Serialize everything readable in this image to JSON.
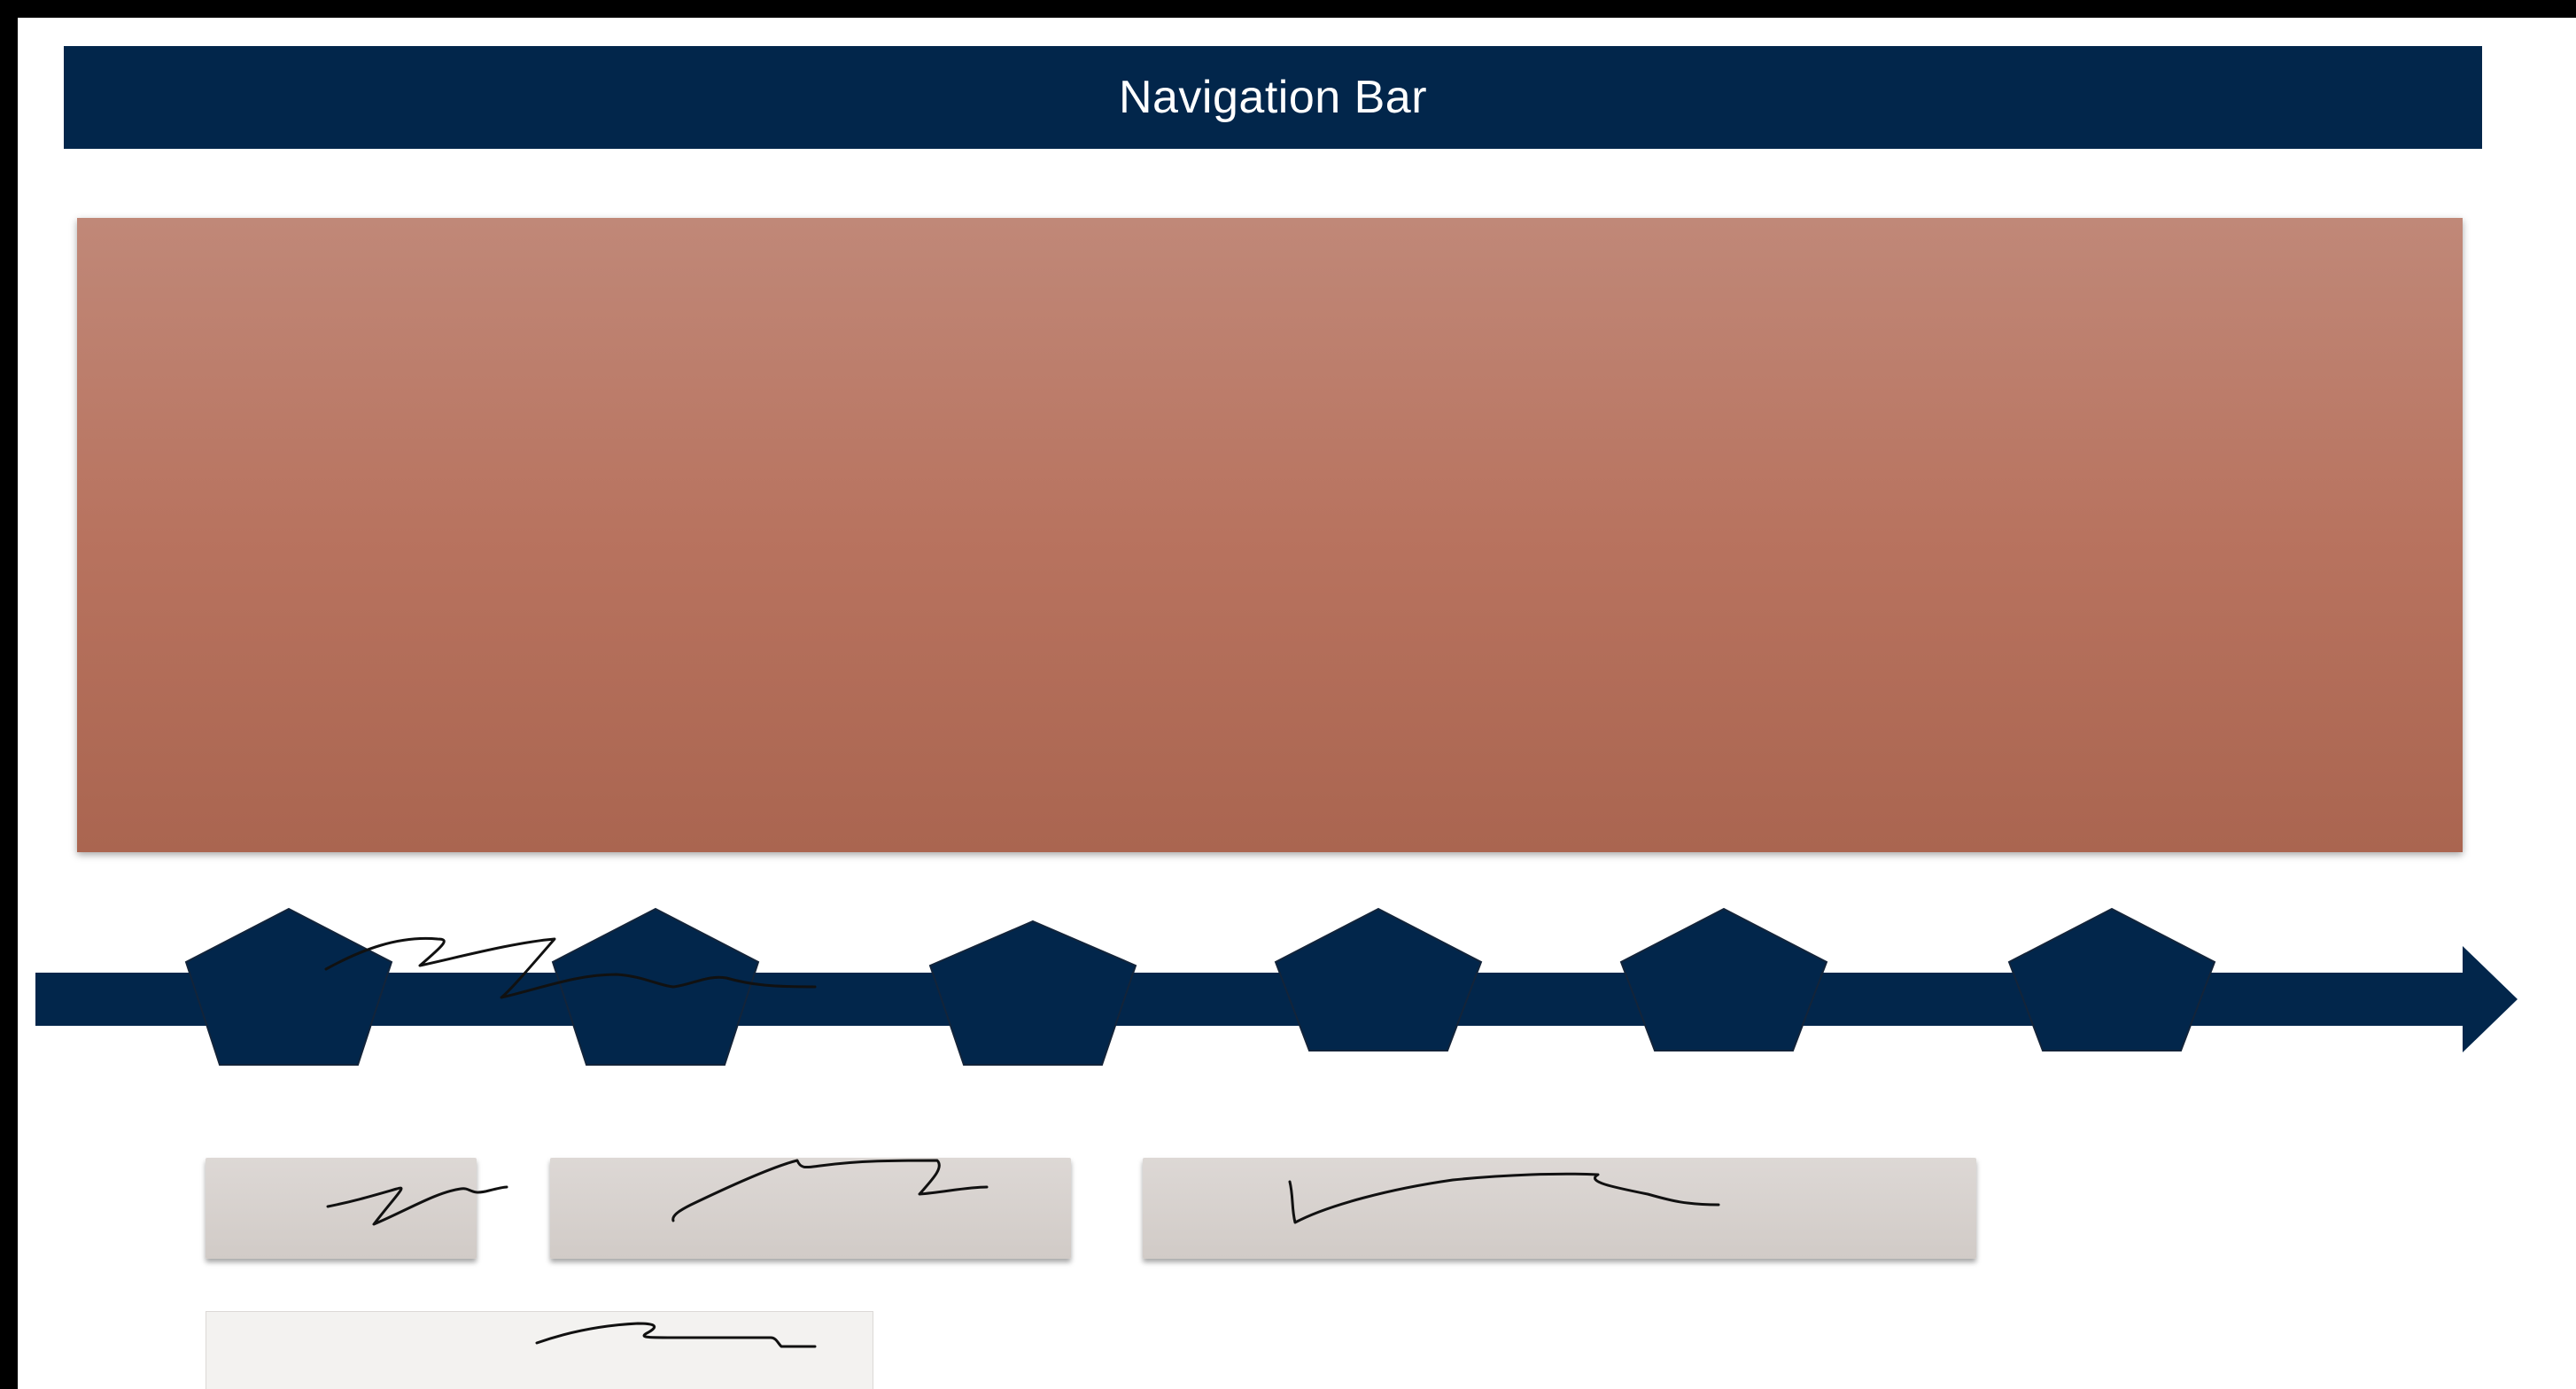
{
  "nav": {
    "title": "Navigation Bar"
  },
  "colors": {
    "navy": "#02264b",
    "hero_top": "#c08878",
    "hero_bottom": "#aa6550",
    "button": "#d6d0cc",
    "panel": "#f3f2f0"
  },
  "timeline": {
    "milestone_count": 6,
    "icons": [
      "arrow-right-icon",
      "pentagon-icon"
    ]
  }
}
